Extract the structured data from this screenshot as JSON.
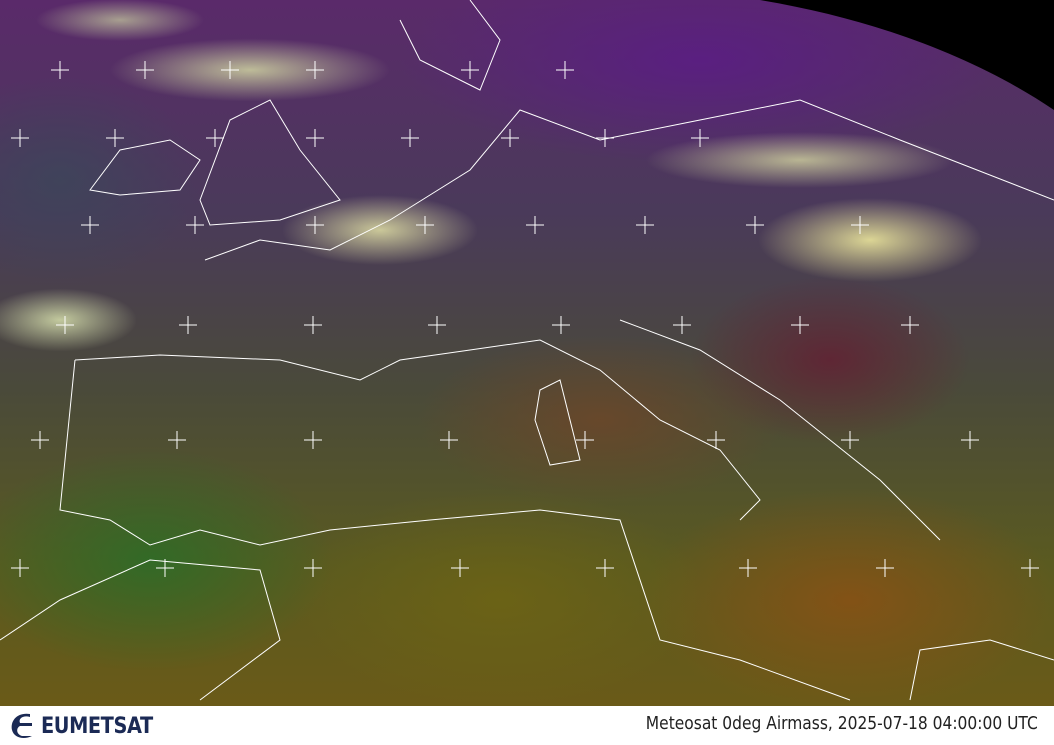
{
  "image": {
    "type": "satellite-rgb-composite",
    "overlay": [
      "coastlines",
      "country-borders",
      "lat-lon-grid-crosses"
    ],
    "colors": {
      "cloud": "#f0f0a0",
      "land_green": "#3a6a2a",
      "dry_air": "#8a5a20",
      "cold_air": "#5a2a7a",
      "space": "#000000"
    }
  },
  "footer": {
    "logo": "EUMETSAT",
    "caption": "Meteosat 0deg Airmass, 2025-07-18 04:00:00 UTC"
  }
}
